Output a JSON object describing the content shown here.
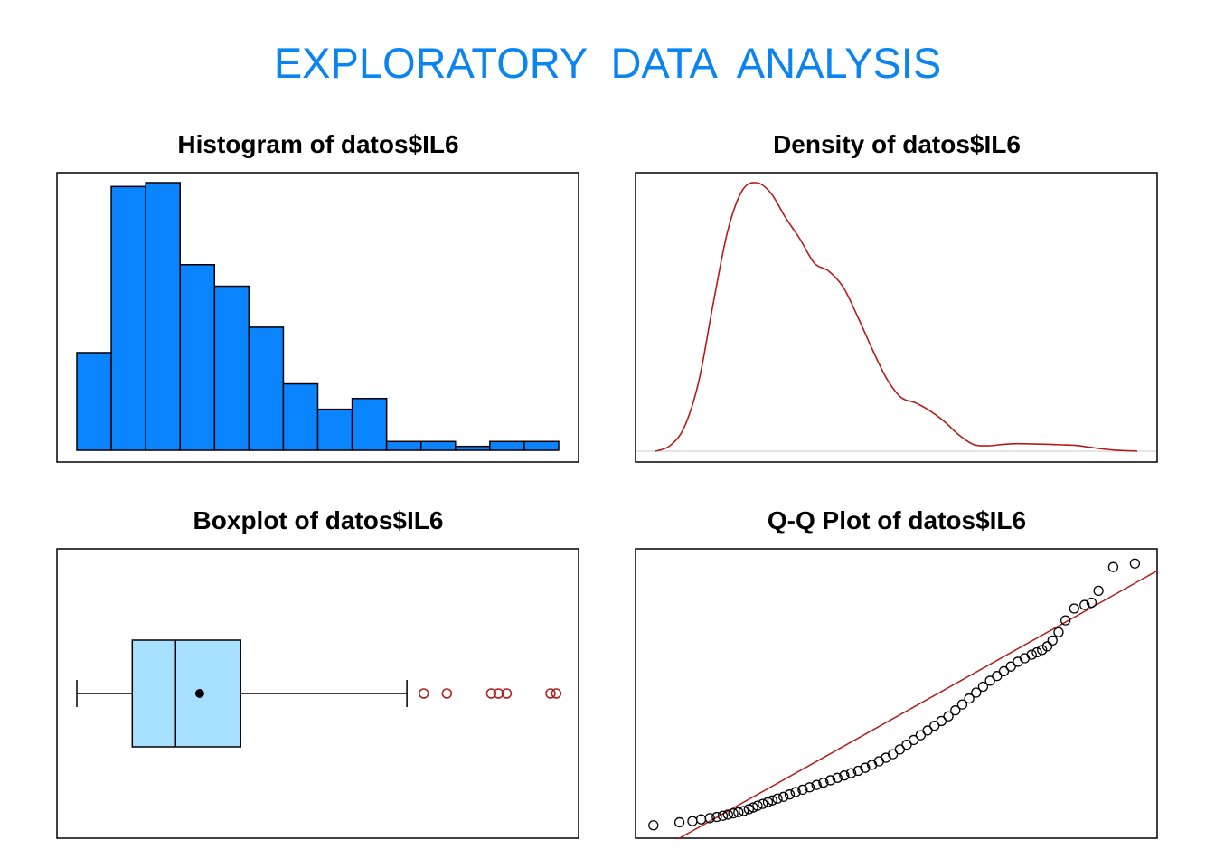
{
  "page": {
    "title": "EXPLORATORY  DATA  ANALYSIS",
    "title_color": "#0A84F0"
  },
  "chart_data": [
    {
      "type": "bar",
      "title": "Histogram of datos$IL6",
      "bin_count_heights": [
        10,
        27,
        27.4,
        19,
        16.8,
        12.6,
        6.8,
        4.2,
        5.3,
        0.9,
        0.9,
        0.4,
        0.9,
        0.9
      ],
      "fill": "#0A84FF",
      "edge": "#000000",
      "axes_shown": false
    },
    {
      "type": "line",
      "title": "Density of datos$IL6",
      "x": [
        0,
        3,
        6,
        9,
        12,
        15,
        18,
        21,
        24,
        27,
        30,
        33,
        36,
        39,
        42,
        45,
        48,
        51,
        54,
        57,
        60,
        63,
        66,
        69,
        72,
        75,
        78,
        81,
        84,
        87,
        90,
        93,
        96,
        99,
        100
      ],
      "y": [
        0.0,
        0.02,
        0.09,
        0.26,
        0.55,
        0.82,
        0.97,
        1.0,
        0.96,
        0.87,
        0.79,
        0.7,
        0.67,
        0.61,
        0.5,
        0.38,
        0.27,
        0.2,
        0.18,
        0.15,
        0.11,
        0.06,
        0.025,
        0.02,
        0.025,
        0.028,
        0.027,
        0.026,
        0.024,
        0.022,
        0.015,
        0.008,
        0.003,
        0.001,
        0.0
      ],
      "line_color": "#B31B1B",
      "baseline_color": "#C8C8C8",
      "axes_shown": false
    },
    {
      "type": "boxplot",
      "title": "Boxplot of datos$IL6",
      "orientation": "horizontal",
      "whisker_low": 0,
      "q1": 11.5,
      "median": 20.5,
      "q3": 34.0,
      "whisker_high": 68.5,
      "mean": 25.5,
      "outliers": [
        72.0,
        76.8,
        86.0,
        87.5,
        89.2,
        98.3,
        99.5
      ],
      "box_fill": "#A8E0FF",
      "outlier_color": "#B31B1B",
      "axes_shown": false
    },
    {
      "type": "scatter",
      "title": "Q-Q Plot of datos$IL6",
      "theoretical_quantiles": [
        -2.7,
        -2.4,
        -2.25,
        -2.15,
        -2.05,
        -1.97,
        -1.9,
        -1.84,
        -1.78,
        -1.72,
        -1.66,
        -1.6,
        -1.55,
        -1.5,
        -1.44,
        -1.38,
        -1.33,
        -1.27,
        -1.2,
        -1.13,
        -1.06,
        -0.98,
        -0.9,
        -0.82,
        -0.74,
        -0.66,
        -0.58,
        -0.5,
        -0.42,
        -0.34,
        -0.26,
        -0.18,
        -0.1,
        -0.02,
        0.06,
        0.14,
        0.22,
        0.3,
        0.38,
        0.46,
        0.54,
        0.62,
        0.7,
        0.78,
        0.86,
        0.94,
        1.02,
        1.1,
        1.18,
        1.26,
        1.34,
        1.42,
        1.5,
        1.58,
        1.66,
        1.72,
        1.78,
        1.84,
        1.9,
        1.97,
        2.05,
        2.15,
        2.27,
        2.35,
        2.43,
        2.6,
        2.85
      ],
      "sample_quantiles": [
        -2.0,
        -1.95,
        -1.93,
        -1.9,
        -1.88,
        -1.86,
        -1.84,
        -1.82,
        -1.8,
        -1.78,
        -1.76,
        -1.73,
        -1.7,
        -1.67,
        -1.64,
        -1.61,
        -1.58,
        -1.55,
        -1.52,
        -1.48,
        -1.44,
        -1.4,
        -1.36,
        -1.32,
        -1.28,
        -1.24,
        -1.2,
        -1.16,
        -1.12,
        -1.08,
        -1.03,
        -0.98,
        -0.92,
        -0.86,
        -0.8,
        -0.72,
        -0.64,
        -0.56,
        -0.48,
        -0.4,
        -0.32,
        -0.24,
        -0.16,
        -0.06,
        0.04,
        0.14,
        0.24,
        0.34,
        0.44,
        0.52,
        0.6,
        0.68,
        0.76,
        0.82,
        0.88,
        0.92,
        0.96,
        1.02,
        1.12,
        1.26,
        1.46,
        1.66,
        1.72,
        1.76,
        1.96,
        2.36,
        2.42
      ],
      "reference_line": {
        "intercept": -0.25,
        "slope": 0.82
      },
      "point_color": "#000000",
      "line_color": "#B31B1B",
      "axes_shown": false
    }
  ]
}
